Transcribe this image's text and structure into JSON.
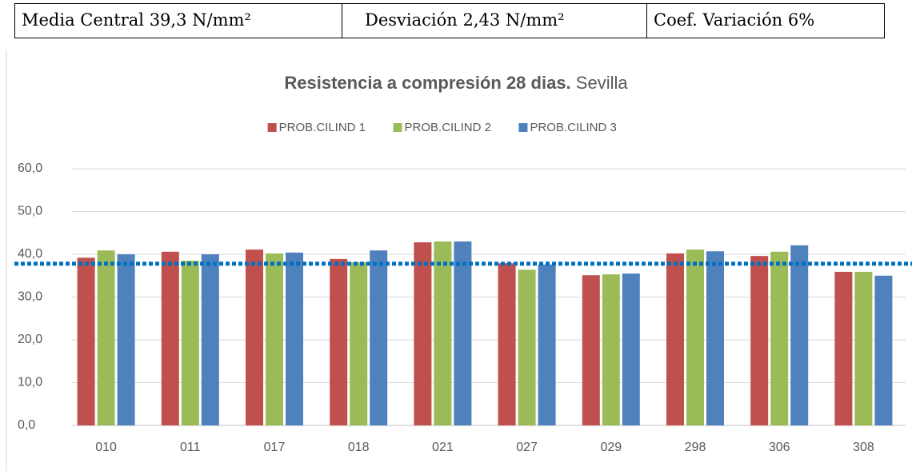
{
  "header": {
    "cells": [
      "Media Central 39,3 N/mm²",
      "Desviación 2,43 N/mm²",
      "Coef. Variación 6%"
    ]
  },
  "chart_data": {
    "type": "bar",
    "title": "Resistencia a compresión 28 dias.",
    "subtitle": "Sevilla",
    "categories": [
      "010",
      "011",
      "017",
      "018",
      "021",
      "027",
      "029",
      "298",
      "306",
      "308"
    ],
    "series": [
      {
        "name": "PROB.CILIND 1",
        "color": "#c0504d",
        "values": [
          39.2,
          40.6,
          41.1,
          38.9,
          42.8,
          37.9,
          35.1,
          40.2,
          39.6,
          35.9
        ]
      },
      {
        "name": "PROB.CILIND 2",
        "color": "#9bbb59",
        "values": [
          40.9,
          38.5,
          40.2,
          38.1,
          43.0,
          36.4,
          35.3,
          41.1,
          40.6,
          35.9
        ]
      },
      {
        "name": "PROB.CILIND 3",
        "color": "#4f81bd",
        "values": [
          40.0,
          40.0,
          40.4,
          40.9,
          43.0,
          37.6,
          35.5,
          40.7,
          42.1,
          35.0
        ]
      }
    ],
    "reference_line": {
      "value": 37.8,
      "color": "#0070c0"
    },
    "ylim": [
      0,
      60
    ],
    "yticks": [
      {
        "value": 0,
        "label": "0,0"
      },
      {
        "value": 10,
        "label": "10,0"
      },
      {
        "value": 20,
        "label": "20,0"
      },
      {
        "value": 30,
        "label": "30,0"
      },
      {
        "value": 40,
        "label": "40,0"
      },
      {
        "value": 50,
        "label": "50,0"
      },
      {
        "value": 60,
        "label": "60,0"
      }
    ],
    "grid": true,
    "legend": "top"
  }
}
